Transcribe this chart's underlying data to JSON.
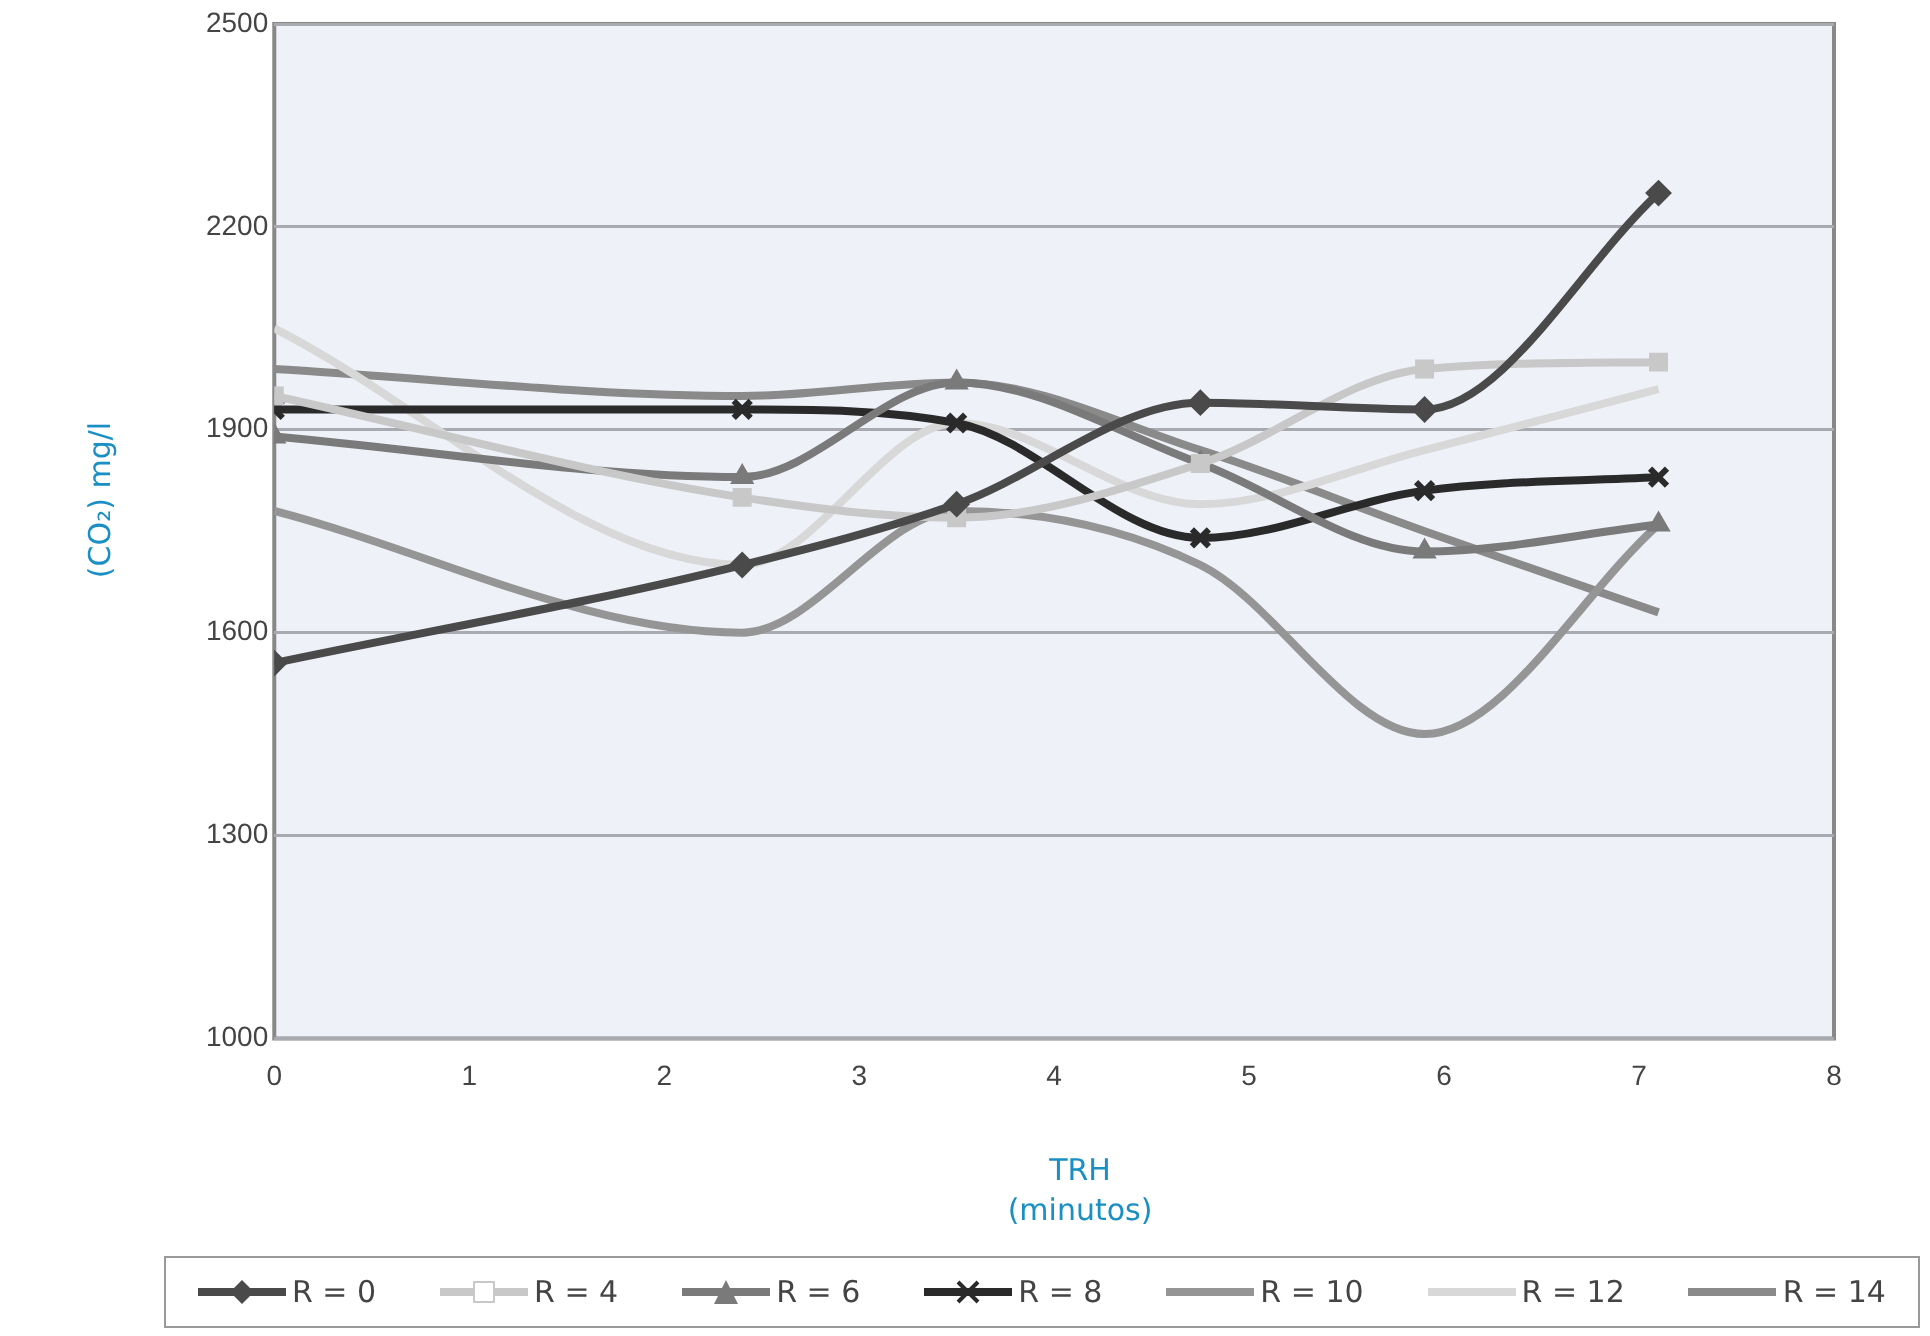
{
  "chart_data": {
    "type": "line",
    "xlabel": "TRH\n(minutos)",
    "ylabel": "(CO₂) mg/l",
    "xlim": [
      0,
      8
    ],
    "xticks": [
      0,
      1,
      2,
      3,
      4,
      5,
      6,
      7,
      8
    ],
    "ylim": [
      1000,
      2500
    ],
    "yticks": [
      1000,
      1300,
      1600,
      1900,
      2200,
      2500
    ],
    "grid": "y",
    "legend": "bottom",
    "x": [
      0,
      2.4,
      3.5,
      4.75,
      5.9,
      7.1
    ],
    "series": [
      {
        "name": "R = 0",
        "color": "#4a4a4a",
        "marker": "diamond",
        "values": [
          1555,
          1700,
          1790,
          1940,
          1930,
          2250
        ]
      },
      {
        "name": "R = 4",
        "color": "#c8c8c8",
        "marker": "square",
        "values": [
          1950,
          1800,
          1770,
          1850,
          1990,
          2000
        ]
      },
      {
        "name": "R = 6",
        "color": "#7a7a7a",
        "marker": "triangle",
        "values": [
          1890,
          1830,
          1970,
          1850,
          1720,
          1760
        ]
      },
      {
        "name": "R = 8",
        "color": "#2a2a2a",
        "marker": "cross",
        "values": [
          1930,
          1930,
          1910,
          1740,
          1810,
          1830
        ]
      },
      {
        "name": "R = 10",
        "color": "#959595",
        "marker": "none",
        "values": [
          1780,
          1600,
          1780,
          1700,
          1450,
          1760
        ]
      },
      {
        "name": "R = 12",
        "color": "#d8d8d8",
        "marker": "none",
        "values": [
          2050,
          1700,
          1910,
          1790,
          1870,
          1960
        ]
      },
      {
        "name": "R = 14",
        "color": "#8a8a8a",
        "marker": "none",
        "values": [
          1990,
          1950,
          1970,
          1870,
          1750,
          1630
        ]
      }
    ]
  }
}
